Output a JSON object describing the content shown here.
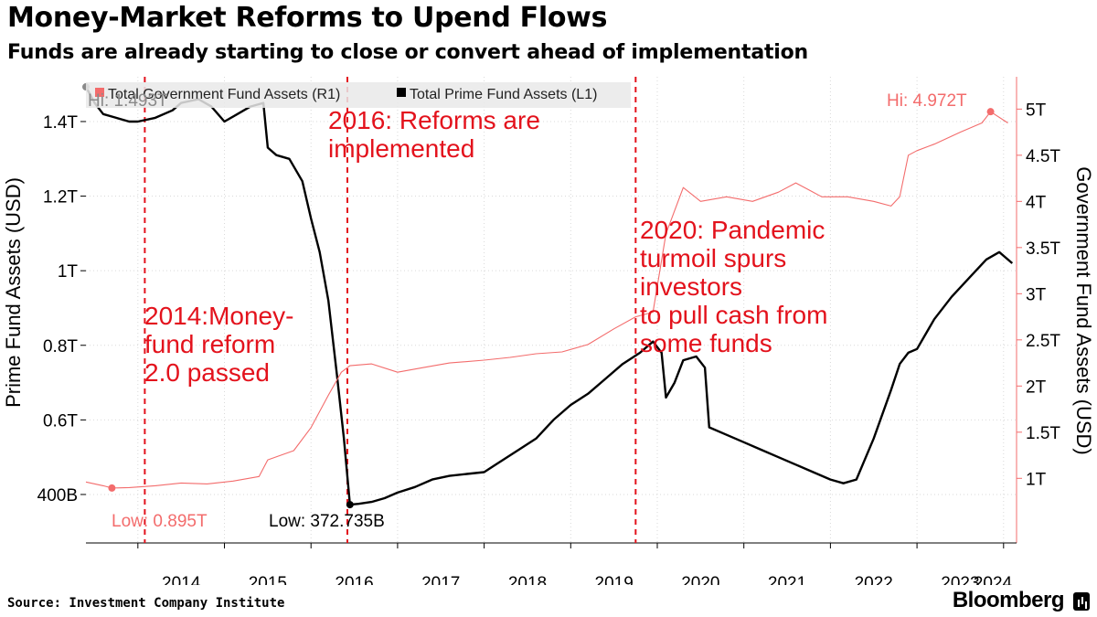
{
  "header": {
    "title": "Money-Market Reforms to Upend Flows",
    "subtitle": "Funds are already starting to close or convert ahead of implementation"
  },
  "footer": {
    "source": "Source: Investment Company Institute",
    "brand": "Bloomberg"
  },
  "colors": {
    "government": "#f36c6c",
    "prime": "#000000",
    "annotation": "#e3121c",
    "grid": "#d9d9d9"
  },
  "chart_data": {
    "type": "line",
    "x_tick_labels": [
      "2014",
      "2015",
      "2016",
      "2017",
      "2018",
      "2019",
      "2020",
      "2021",
      "2022",
      "2023",
      "2024"
    ],
    "left_axis": {
      "label": "Prime Fund Assets (USD)",
      "tick_labels": [
        "400B",
        "0.6T",
        "0.8T",
        "1T",
        "1.2T",
        "1.4T"
      ],
      "tick_values": [
        0.4,
        0.6,
        0.8,
        1.0,
        1.2,
        1.4
      ],
      "range": [
        0.27,
        1.52
      ]
    },
    "right_axis": {
      "label": "Government Fund Assets (USD)",
      "tick_labels": [
        "1T",
        "1.5T",
        "2T",
        "2.5T",
        "3T",
        "3.5T",
        "4T",
        "4.5T",
        "5T"
      ],
      "tick_values": [
        1,
        1.5,
        2,
        2.5,
        3,
        3.5,
        4,
        4.5,
        5
      ],
      "range": [
        0.3,
        5.35
      ]
    },
    "legend": [
      {
        "key": "government",
        "label": "Total Government Fund Assets (R1)"
      },
      {
        "key": "prime",
        "label": "Total Prime Fund Assets (L1)"
      }
    ],
    "series": [
      {
        "key": "prime",
        "name": "Total Prime Fund Assets (L1)",
        "axis": "left",
        "points": [
          [
            2013.4,
            1.493
          ],
          [
            2013.5,
            1.45
          ],
          [
            2013.6,
            1.42
          ],
          [
            2013.75,
            1.41
          ],
          [
            2013.9,
            1.4
          ],
          [
            2014.0,
            1.4
          ],
          [
            2014.2,
            1.41
          ],
          [
            2014.4,
            1.43
          ],
          [
            2014.5,
            1.45
          ],
          [
            2014.7,
            1.46
          ],
          [
            2014.85,
            1.44
          ],
          [
            2015.0,
            1.4
          ],
          [
            2015.15,
            1.42
          ],
          [
            2015.3,
            1.44
          ],
          [
            2015.45,
            1.45
          ],
          [
            2015.5,
            1.33
          ],
          [
            2015.6,
            1.31
          ],
          [
            2015.75,
            1.3
          ],
          [
            2015.9,
            1.24
          ],
          [
            2016.0,
            1.14
          ],
          [
            2016.1,
            1.05
          ],
          [
            2016.2,
            0.92
          ],
          [
            2016.3,
            0.72
          ],
          [
            2016.38,
            0.55
          ],
          [
            2016.45,
            0.3727
          ],
          [
            2016.55,
            0.375
          ],
          [
            2016.7,
            0.38
          ],
          [
            2016.85,
            0.39
          ],
          [
            2017.0,
            0.405
          ],
          [
            2017.2,
            0.42
          ],
          [
            2017.4,
            0.44
          ],
          [
            2017.6,
            0.45
          ],
          [
            2017.8,
            0.455
          ],
          [
            2018.0,
            0.46
          ],
          [
            2018.2,
            0.49
          ],
          [
            2018.4,
            0.52
          ],
          [
            2018.6,
            0.55
          ],
          [
            2018.8,
            0.6
          ],
          [
            2019.0,
            0.64
          ],
          [
            2019.2,
            0.67
          ],
          [
            2019.4,
            0.71
          ],
          [
            2019.6,
            0.75
          ],
          [
            2019.8,
            0.78
          ],
          [
            2019.95,
            0.81
          ],
          [
            2020.05,
            0.78
          ],
          [
            2020.1,
            0.66
          ],
          [
            2020.2,
            0.7
          ],
          [
            2020.3,
            0.76
          ],
          [
            2020.45,
            0.77
          ],
          [
            2020.55,
            0.74
          ],
          [
            2020.6,
            0.58
          ],
          [
            2020.8,
            0.56
          ],
          [
            2021.0,
            0.54
          ],
          [
            2021.2,
            0.52
          ],
          [
            2021.4,
            0.5
          ],
          [
            2021.6,
            0.48
          ],
          [
            2021.8,
            0.46
          ],
          [
            2022.0,
            0.44
          ],
          [
            2022.15,
            0.43
          ],
          [
            2022.3,
            0.44
          ],
          [
            2022.5,
            0.55
          ],
          [
            2022.7,
            0.68
          ],
          [
            2022.8,
            0.75
          ],
          [
            2022.9,
            0.78
          ],
          [
            2023.0,
            0.79
          ],
          [
            2023.2,
            0.87
          ],
          [
            2023.4,
            0.93
          ],
          [
            2023.6,
            0.98
          ],
          [
            2023.8,
            1.03
          ],
          [
            2023.95,
            1.05
          ],
          [
            2024.1,
            1.02
          ]
        ]
      },
      {
        "key": "government",
        "name": "Total Government Fund Assets (R1)",
        "axis": "right",
        "points": [
          [
            2013.4,
            0.96
          ],
          [
            2013.6,
            0.92
          ],
          [
            2013.7,
            0.895
          ],
          [
            2013.9,
            0.9
          ],
          [
            2014.2,
            0.92
          ],
          [
            2014.5,
            0.95
          ],
          [
            2014.8,
            0.94
          ],
          [
            2015.1,
            0.97
          ],
          [
            2015.4,
            1.02
          ],
          [
            2015.5,
            1.2
          ],
          [
            2015.8,
            1.3
          ],
          [
            2016.0,
            1.55
          ],
          [
            2016.2,
            1.9
          ],
          [
            2016.35,
            2.15
          ],
          [
            2016.45,
            2.22
          ],
          [
            2016.7,
            2.24
          ],
          [
            2017.0,
            2.15
          ],
          [
            2017.3,
            2.2
          ],
          [
            2017.6,
            2.25
          ],
          [
            2018.0,
            2.28
          ],
          [
            2018.3,
            2.31
          ],
          [
            2018.6,
            2.35
          ],
          [
            2018.9,
            2.37
          ],
          [
            2019.2,
            2.45
          ],
          [
            2019.5,
            2.62
          ],
          [
            2019.75,
            2.75
          ],
          [
            2019.95,
            2.8
          ],
          [
            2020.1,
            3.65
          ],
          [
            2020.3,
            4.15
          ],
          [
            2020.5,
            4.0
          ],
          [
            2020.8,
            4.05
          ],
          [
            2021.1,
            4.0
          ],
          [
            2021.4,
            4.1
          ],
          [
            2021.6,
            4.2
          ],
          [
            2021.9,
            4.05
          ],
          [
            2022.2,
            4.05
          ],
          [
            2022.5,
            4.0
          ],
          [
            2022.7,
            3.95
          ],
          [
            2022.8,
            4.05
          ],
          [
            2022.9,
            4.5
          ],
          [
            2023.0,
            4.55
          ],
          [
            2023.2,
            4.62
          ],
          [
            2023.5,
            4.75
          ],
          [
            2023.75,
            4.85
          ],
          [
            2023.85,
            4.972
          ],
          [
            2024.05,
            4.85
          ]
        ]
      }
    ],
    "annotations": [
      {
        "key": "a2014",
        "x": 2014.08,
        "lines": [
          "2014:Money-",
          "fund reform",
          "2.0 passed"
        ]
      },
      {
        "key": "a2016",
        "x": 2016.42,
        "lines": [
          "2016: Reforms are",
          "implemented"
        ]
      },
      {
        "key": "a2020",
        "x": 2019.75,
        "lines": [
          "2020: Pandemic",
          "turmoil spurs",
          "investors",
          "to pull cash from",
          "some funds"
        ]
      }
    ],
    "point_labels": {
      "prime_hi": "Hi: 1.493T",
      "prime_low": "Low: 372.735B",
      "gov_hi": "Hi: 4.972T",
      "gov_low": "Low: 0.895T"
    },
    "grid": true,
    "legend_position": "top-left"
  }
}
